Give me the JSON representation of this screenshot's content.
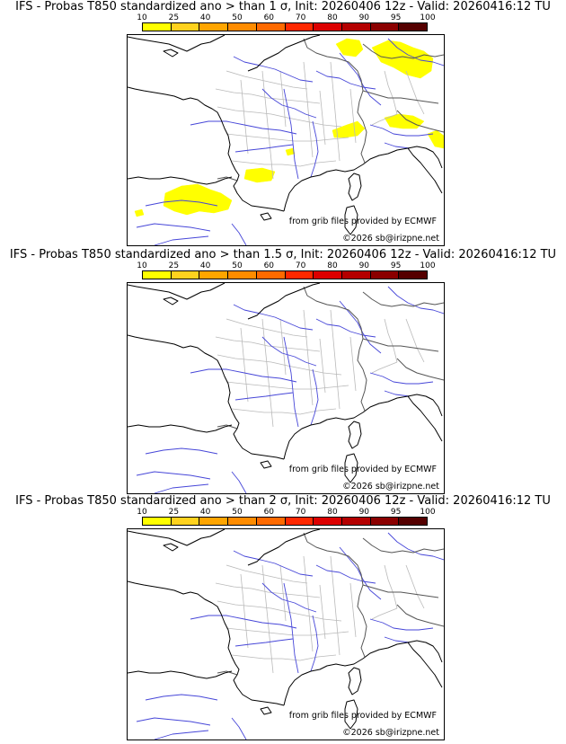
{
  "scale": {
    "ticks": [
      "10",
      "25",
      "40",
      "50",
      "60",
      "70",
      "80",
      "90",
      "95",
      "100"
    ],
    "colors": [
      "#ffff00",
      "#ffd21e",
      "#ffa500",
      "#ff8c00",
      "#ff6a00",
      "#ff2800",
      "#dc0000",
      "#b40000",
      "#8b0000",
      "#550000"
    ]
  },
  "panels": [
    {
      "title": "IFS - Probas T850  standardized ano > than 1 σ, Init: 20260406 12z - Valid: 20260416:12 TU",
      "source_credit": "from grib files provided by ECMWF",
      "copyright": "©2026 sb@irizpne.net"
    },
    {
      "title": "IFS - Probas T850  standardized ano > than 1.5 σ, Init: 20260406 12z - Valid: 20260416:12 TU",
      "source_credit": "from grib files provided by ECMWF",
      "copyright": "©2026 sb@irizpne.net"
    },
    {
      "title": "IFS - Probas T850  standardized ano > than 2 σ, Init: 20260406 12z - Valid: 20260416:12 TU",
      "source_credit": "from grib files provided by ECMWF",
      "copyright": "©2026 sb@irizpne.net"
    }
  ]
}
